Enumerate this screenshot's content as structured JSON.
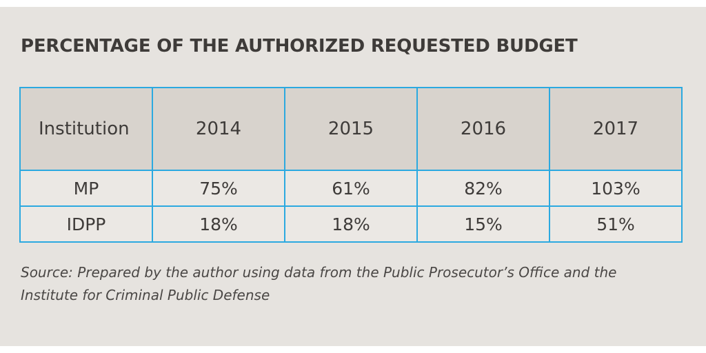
{
  "chart_data": {
    "type": "table",
    "title": "PERCENTAGE OF THE AUTHORIZED REQUESTED BUDGET",
    "columns": [
      "Institution",
      "2014",
      "2015",
      "2016",
      "2017"
    ],
    "rows": [
      {
        "label": "MP",
        "cells": [
          "75%",
          "61%",
          "82%",
          "103%"
        ],
        "values": [
          75,
          61,
          82,
          103
        ]
      },
      {
        "label": "IDPP",
        "cells": [
          "18%",
          "18%",
          "15%",
          "51%"
        ],
        "values": [
          18,
          18,
          15,
          51
        ]
      }
    ],
    "unit": "%",
    "source": "Source: Prepared by the author using data from the Public Prosecutor’s Office and the Institute for Criminal Public Defense"
  },
  "colors": {
    "background": "#e6e3df",
    "header_fill": "#d8d3cd",
    "border": "#2ba9e0",
    "text": "#3e3b39"
  }
}
